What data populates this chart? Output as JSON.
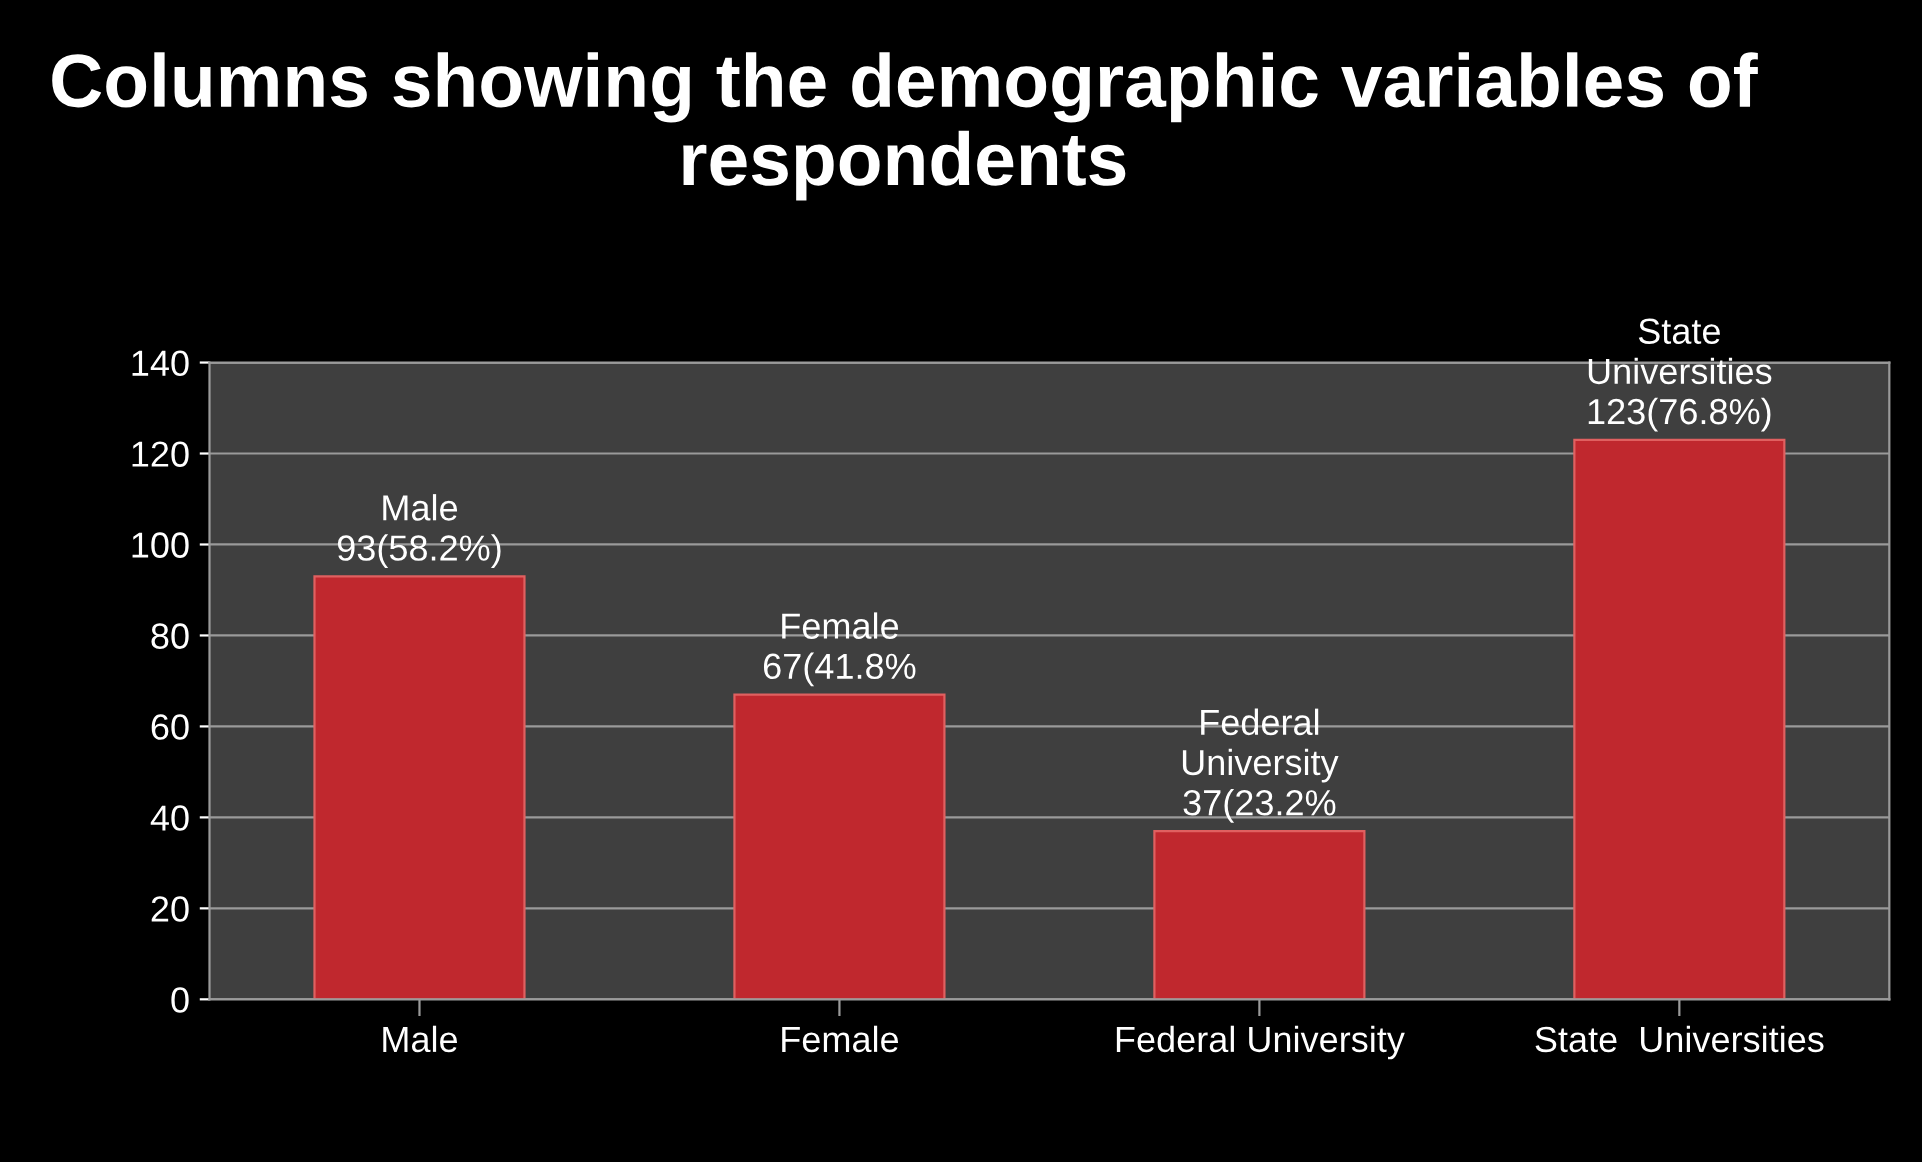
{
  "chart_data": {
    "type": "bar",
    "title": "Columns showing the demographic variables of respondents",
    "categories": [
      "Male",
      "Female",
      "Federal University",
      "State  Universities"
    ],
    "values": [
      93,
      67,
      37,
      123
    ],
    "color": "#c0282e",
    "value_labels": [
      "Male\n93(58.2%)",
      "Female\n67(41.8%",
      "Federal\nUniversity\n37(23.2%",
      "State\nUniversities\n123(76.8%)"
    ],
    "ylim": [
      0,
      140
    ],
    "yticks": [
      0,
      20,
      40,
      60,
      80,
      100,
      120,
      140
    ],
    "grid": "y",
    "legend": false
  }
}
